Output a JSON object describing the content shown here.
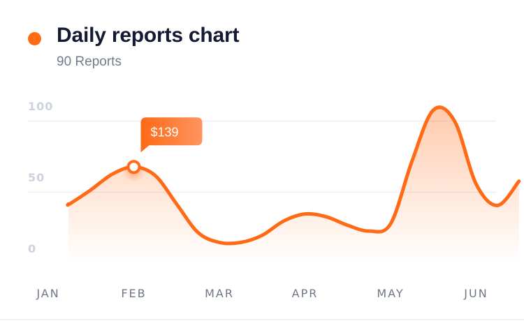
{
  "header": {
    "title": "Daily reports chart",
    "subtitle": "90 Reports"
  },
  "colors": {
    "accent": "#fe6a15",
    "title": "#141a33",
    "grid": "#eceff4"
  },
  "chart_data": {
    "type": "area",
    "title": "Daily reports chart",
    "subtitle": "90 Reports",
    "categories": [
      "JAN",
      "FEB",
      "MAR",
      "APR",
      "MAY",
      "JUN"
    ],
    "x": [
      0,
      0.25,
      0.5,
      0.75,
      1,
      1.25,
      1.5,
      1.75,
      2,
      2.25,
      2.5,
      2.75,
      3,
      3.25,
      3.5,
      3.75,
      4,
      4.25,
      4.5,
      4.75,
      5,
      5.25,
      5.5
    ],
    "values": [
      42,
      42,
      52,
      63,
      68,
      62,
      42,
      22,
      15,
      15,
      20,
      30,
      35,
      33,
      27,
      23,
      28,
      72,
      108,
      100,
      56,
      41,
      58
    ],
    "ylim": [
      0,
      100
    ],
    "yticks": [
      0,
      50,
      100
    ],
    "xlabel": "",
    "ylabel": "",
    "grid": true,
    "legend": "none",
    "tooltip": {
      "label": "$139",
      "x": 1.0
    }
  }
}
